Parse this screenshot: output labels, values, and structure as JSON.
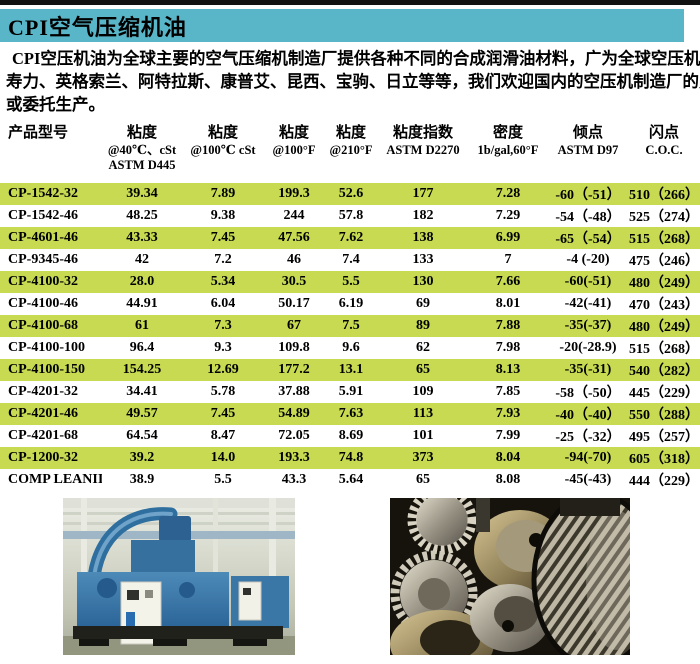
{
  "header": {
    "title": "CPI空气压缩机油"
  },
  "intro": {
    "lines": [
      "CPI空压机油为全球主要的空气压缩机制造厂提供各种不同的合成润滑油材料，广为全球空压机厂家配套:",
      "寿力、英格索兰、阿特拉斯、康普艾、昆西、宝驹、日立等等，我们欢迎国内的空压机制造厂的贴牌配套",
      "或委托生产。"
    ]
  },
  "table": {
    "columns": [
      {
        "line1": "产品型号",
        "line2": "",
        "line3": ""
      },
      {
        "line1": "粘度",
        "line2": "@40℃、cSt",
        "line3": "ASTM D445"
      },
      {
        "line1": "粘度",
        "line2": "@100℃ cSt",
        "line3": ""
      },
      {
        "line1": "粘度",
        "line2": "@100°F",
        "line3": ""
      },
      {
        "line1": "粘度",
        "line2": "@210°F",
        "line3": ""
      },
      {
        "line1": "粘度指数",
        "line2": "ASTM D2270",
        "line3": ""
      },
      {
        "line1": "密度",
        "line2": "1b/gal,60°F",
        "line3": ""
      },
      {
        "line1": "倾点",
        "line2": "ASTM D97",
        "line3": ""
      },
      {
        "line1": "闪点",
        "line2": "C.O.C.",
        "line3": ""
      }
    ],
    "rows": [
      [
        "CP-1542-32",
        "39.34",
        "7.89",
        "199.3",
        "52.6",
        "177",
        "7.28",
        "-60（-51）",
        "510（266）"
      ],
      [
        "CP-1542-46",
        "48.25",
        "9.38",
        "244",
        "57.8",
        "182",
        "7.29",
        "-54（-48）",
        "525（274）"
      ],
      [
        "CP-4601-46",
        "43.33",
        "7.45",
        "47.56",
        "7.62",
        "138",
        "6.99",
        "-65（-54）",
        "515（268）"
      ],
      [
        "CP-9345-46",
        "42",
        "7.2",
        "46",
        "7.4",
        "133",
        "7",
        "-4 (-20)",
        "475（246）"
      ],
      [
        "CP-4100-32",
        "28.0",
        "5.34",
        "30.5",
        "5.5",
        "130",
        "7.66",
        "-60(-51)",
        "480（249）"
      ],
      [
        "CP-4100-46",
        "44.91",
        "6.04",
        "50.17",
        "6.19",
        "69",
        "8.01",
        "-42(-41)",
        "470（243）"
      ],
      [
        "CP-4100-68",
        "61",
        "7.3",
        "67",
        "7.5",
        "89",
        "7.88",
        "-35(-37)",
        "480（249）"
      ],
      [
        "CP-4100-100",
        "96.4",
        "9.3",
        "109.8",
        "9.6",
        "62",
        "7.98",
        "-20(-28.9)",
        "515（268）"
      ],
      [
        "CP-4100-150",
        "154.25",
        "12.69",
        "177.2",
        "13.1",
        "65",
        "8.13",
        "-35(-31)",
        "540（282）"
      ],
      [
        "CP-4201-32",
        "34.41",
        "5.78",
        "37.88",
        "5.91",
        "109",
        "7.85",
        "-58（-50）",
        "445（229）"
      ],
      [
        "CP-4201-46",
        "49.57",
        "7.45",
        "54.89",
        "7.63",
        "113",
        "7.93",
        "-40（-40）",
        "550（288）"
      ],
      [
        "CP-4201-68",
        "64.54",
        "8.47",
        "72.05",
        "8.69",
        "101",
        "7.99",
        "-25（-32）",
        "495（257）"
      ],
      [
        "CP-1200-32",
        "39.2",
        "14.0",
        "193.3",
        "74.8",
        "373",
        "8.04",
        "-94(-70)",
        "605（318）"
      ],
      [
        "COMP LEANII",
        "38.9",
        "5.5",
        "43.3",
        "5.64",
        "65",
        "8.08",
        "-45(-43)",
        "444（229）"
      ]
    ]
  },
  "colors": {
    "title_bar": "#59b6c8",
    "row_highlight": "#c7da52",
    "top_rule": "#121212"
  }
}
